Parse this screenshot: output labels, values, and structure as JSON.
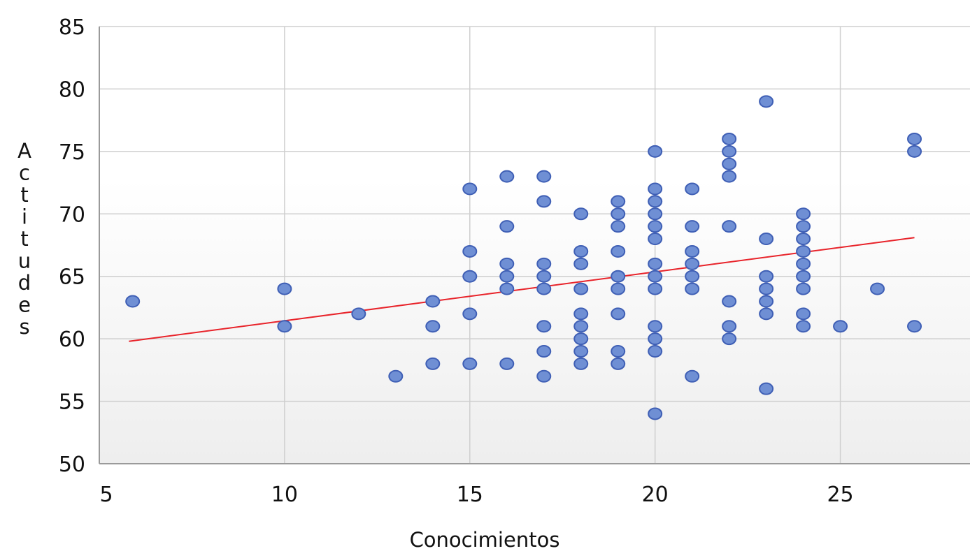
{
  "chart_data": {
    "type": "scatter",
    "title": "",
    "xlabel": "Conocimientos",
    "ylabel": "Actitudes",
    "xlim": [
      5,
      28.5
    ],
    "ylim": [
      50,
      85
    ],
    "x_ticks": [
      5,
      10,
      15,
      20,
      25
    ],
    "y_ticks": [
      50,
      55,
      60,
      65,
      70,
      75,
      80,
      85
    ],
    "x_tick_labels": [
      "5",
      "10",
      "15",
      "20",
      "25"
    ],
    "y_tick_labels": [
      "50",
      "55",
      "60",
      "65",
      "70",
      "75",
      "80",
      "85"
    ],
    "grid": true,
    "legend": "none",
    "marker_color": "#6f8fd4",
    "marker_edge_color": "#3f5fb5",
    "trendline_color": "#e8232a",
    "trendline": {
      "x": [
        5.8,
        27
      ],
      "y": [
        59.8,
        68.1
      ]
    },
    "points": [
      [
        5.9,
        63
      ],
      [
        10,
        64
      ],
      [
        10,
        61
      ],
      [
        12,
        62
      ],
      [
        13,
        57
      ],
      [
        14,
        63
      ],
      [
        14,
        61
      ],
      [
        14,
        58
      ],
      [
        15,
        72
      ],
      [
        15,
        67
      ],
      [
        15,
        65
      ],
      [
        15,
        62
      ],
      [
        15,
        58
      ],
      [
        16,
        73
      ],
      [
        16,
        69
      ],
      [
        16,
        66
      ],
      [
        16,
        65
      ],
      [
        16,
        64
      ],
      [
        16,
        58
      ],
      [
        17,
        73
      ],
      [
        17,
        71
      ],
      [
        17,
        66
      ],
      [
        17,
        65
      ],
      [
        17,
        64
      ],
      [
        17,
        61
      ],
      [
        17,
        59
      ],
      [
        17,
        57
      ],
      [
        18,
        70
      ],
      [
        18,
        67
      ],
      [
        18,
        66
      ],
      [
        18,
        64
      ],
      [
        18,
        62
      ],
      [
        18,
        61
      ],
      [
        18,
        60
      ],
      [
        18,
        59
      ],
      [
        18,
        58
      ],
      [
        19,
        71
      ],
      [
        19,
        70
      ],
      [
        19,
        69
      ],
      [
        19,
        67
      ],
      [
        19,
        65
      ],
      [
        19,
        64
      ],
      [
        19,
        62
      ],
      [
        19,
        59
      ],
      [
        19,
        58
      ],
      [
        20,
        75
      ],
      [
        20,
        72
      ],
      [
        20,
        71
      ],
      [
        20,
        70
      ],
      [
        20,
        69
      ],
      [
        20,
        68
      ],
      [
        20,
        66
      ],
      [
        20,
        65
      ],
      [
        20,
        64
      ],
      [
        20,
        61
      ],
      [
        20,
        60
      ],
      [
        20,
        59
      ],
      [
        20,
        54
      ],
      [
        21,
        72
      ],
      [
        21,
        69
      ],
      [
        21,
        67
      ],
      [
        21,
        66
      ],
      [
        21,
        65
      ],
      [
        21,
        64
      ],
      [
        21,
        57
      ],
      [
        22,
        76
      ],
      [
        22,
        75
      ],
      [
        22,
        74
      ],
      [
        22,
        73
      ],
      [
        22,
        69
      ],
      [
        22,
        63
      ],
      [
        22,
        61
      ],
      [
        22,
        60
      ],
      [
        23,
        79
      ],
      [
        23,
        68
      ],
      [
        23,
        65
      ],
      [
        23,
        64
      ],
      [
        23,
        63
      ],
      [
        23,
        62
      ],
      [
        23,
        56
      ],
      [
        24,
        70
      ],
      [
        24,
        69
      ],
      [
        24,
        68
      ],
      [
        24,
        67
      ],
      [
        24,
        66
      ],
      [
        24,
        65
      ],
      [
        24,
        64
      ],
      [
        24,
        62
      ],
      [
        24,
        61
      ],
      [
        25,
        61
      ],
      [
        26,
        64
      ],
      [
        27,
        76
      ],
      [
        27,
        75
      ],
      [
        27,
        61
      ]
    ]
  }
}
